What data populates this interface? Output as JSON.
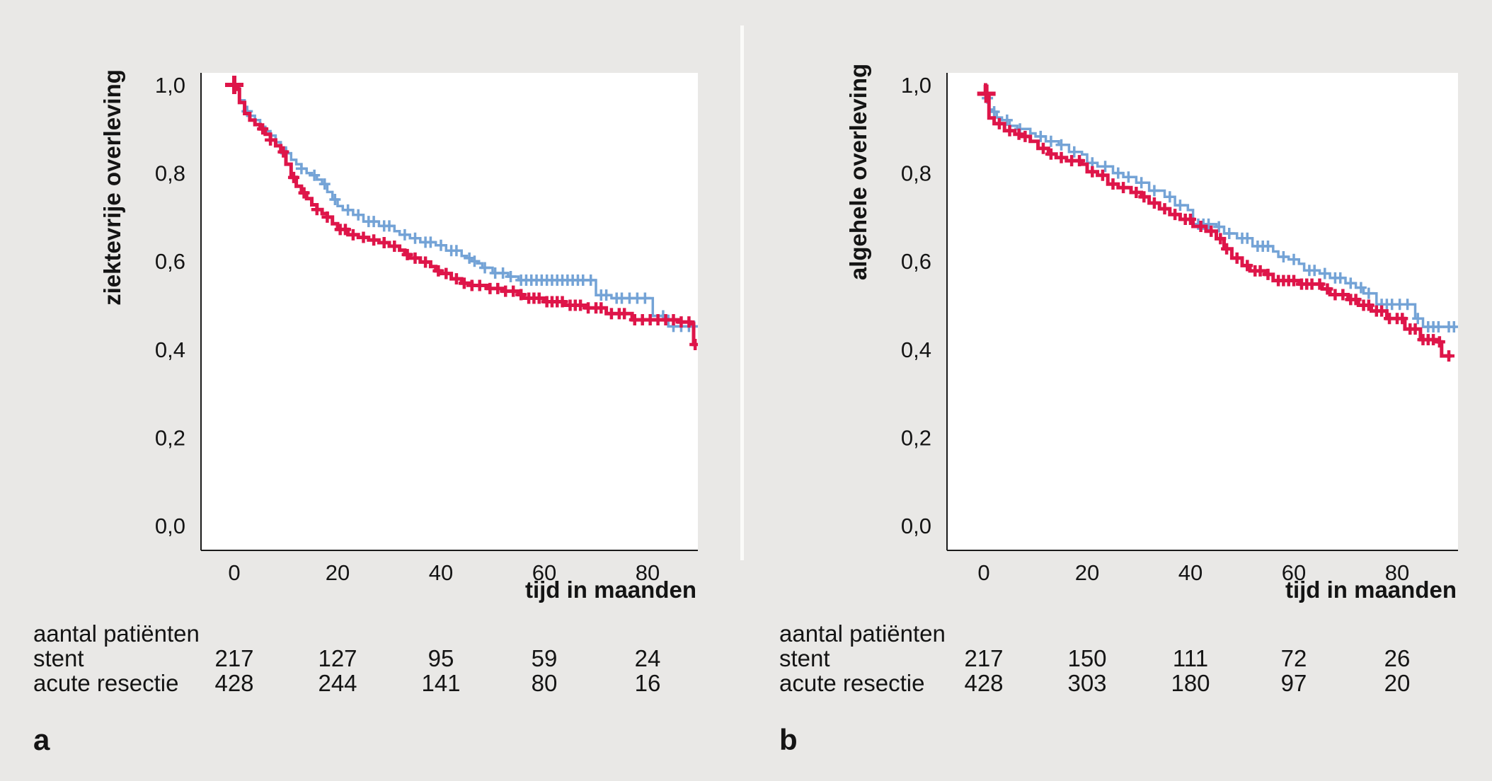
{
  "colors": {
    "background": "#e9e8e6",
    "plot_background": "#ffffff",
    "axis_line": "#1a1a1a",
    "divider": "#fbfbf9",
    "stent_curve": "#74a3d6",
    "stent_text": "#4c86b4",
    "acute_resectie_curve": "#de1549",
    "acute_resectie_text": "#c94f36",
    "panel_label": "#c94f36",
    "text": "#141414"
  },
  "chart_data": [
    {
      "type": "line",
      "subtype": "kaplan-meier-step",
      "panel_label": "a",
      "title": "",
      "xlabel": "tijd in maanden",
      "ylabel": "ziektevrije overleving",
      "xlim": [
        0,
        90
      ],
      "ylim": [
        0,
        1
      ],
      "grid": false,
      "legend_position": "none",
      "x_ticks": [
        0,
        20,
        40,
        60,
        80
      ],
      "y_ticks": [
        0.0,
        0.2,
        0.4,
        0.6,
        0.8,
        1.0
      ],
      "y_tick_labels": [
        "0,0",
        "0,2",
        "0,4",
        "0,6",
        "0,8",
        "1,0"
      ],
      "at_risk_title": "aantal patiënten",
      "at_risk_times": [
        0,
        20,
        40,
        60,
        80
      ],
      "series": [
        {
          "name": "stent",
          "color": "#74a3d6",
          "text_color": "#4c86b4",
          "at_risk": [
            217,
            127,
            95,
            59,
            24
          ],
          "survival_steps": [
            [
              0,
              1.0
            ],
            [
              1,
              0.965
            ],
            [
              2,
              0.94
            ],
            [
              3,
              0.93
            ],
            [
              4,
              0.92
            ],
            [
              5,
              0.905
            ],
            [
              6,
              0.895
            ],
            [
              7,
              0.885
            ],
            [
              8,
              0.87
            ],
            [
              9,
              0.858
            ],
            [
              10,
              0.845
            ],
            [
              11,
              0.83
            ],
            [
              12,
              0.82
            ],
            [
              13,
              0.81
            ],
            [
              14,
              0.8
            ],
            [
              15,
              0.795
            ],
            [
              16,
              0.785
            ],
            [
              17,
              0.775
            ],
            [
              18,
              0.757
            ],
            [
              19,
              0.74
            ],
            [
              20,
              0.725
            ],
            [
              21,
              0.716
            ],
            [
              23,
              0.705
            ],
            [
              25,
              0.69
            ],
            [
              28,
              0.68
            ],
            [
              31,
              0.668
            ],
            [
              32,
              0.66
            ],
            [
              34,
              0.652
            ],
            [
              36,
              0.643
            ],
            [
              39,
              0.636
            ],
            [
              41,
              0.624
            ],
            [
              44,
              0.612
            ],
            [
              45,
              0.607
            ],
            [
              46,
              0.6
            ],
            [
              47,
              0.595
            ],
            [
              48,
              0.585
            ],
            [
              50,
              0.573
            ],
            [
              53,
              0.565
            ],
            [
              55,
              0.557
            ],
            [
              70,
              0.523
            ],
            [
              73,
              0.516
            ],
            [
              81,
              0.476
            ],
            [
              84,
              0.452
            ],
            [
              89.5,
              0.452
            ]
          ],
          "censor_times": [
            2.5,
            10,
            13,
            15.5,
            17.5,
            19.5,
            22,
            24,
            26,
            27,
            29,
            30,
            33,
            35,
            37,
            38,
            40,
            42,
            43,
            45.5,
            46.5,
            48.5,
            50.5,
            52,
            53.5,
            55.5,
            56.5,
            57.5,
            58.5,
            59.5,
            60.5,
            61.5,
            62.5,
            63.5,
            64.5,
            65.5,
            66.5,
            67.5,
            69,
            71,
            72,
            74,
            75,
            76.5,
            78,
            79.5,
            83,
            85,
            86.5,
            88,
            89
          ]
        },
        {
          "name": "acute resectie",
          "color": "#de1549",
          "text_color": "#c94f36",
          "at_risk": [
            428,
            244,
            141,
            80,
            16
          ],
          "survival_steps": [
            [
              0,
              1.0
            ],
            [
              0.7,
              0.99
            ],
            [
              1,
              0.96
            ],
            [
              2,
              0.935
            ],
            [
              3,
              0.92
            ],
            [
              4,
              0.91
            ],
            [
              5,
              0.9
            ],
            [
              6,
              0.888
            ],
            [
              7,
              0.875
            ],
            [
              8,
              0.862
            ],
            [
              9,
              0.848
            ],
            [
              10,
              0.82
            ],
            [
              11,
              0.79
            ],
            [
              12,
              0.77
            ],
            [
              13,
              0.755
            ],
            [
              14,
              0.742
            ],
            [
              15,
              0.728
            ],
            [
              16,
              0.717
            ],
            [
              17,
              0.708
            ],
            [
              18,
              0.7
            ],
            [
              19,
              0.685
            ],
            [
              20,
              0.672
            ],
            [
              22,
              0.66
            ],
            [
              24,
              0.654
            ],
            [
              26,
              0.648
            ],
            [
              28,
              0.642
            ],
            [
              30,
              0.634
            ],
            [
              32,
              0.625
            ],
            [
              33,
              0.615
            ],
            [
              34,
              0.607
            ],
            [
              36,
              0.598
            ],
            [
              38,
              0.588
            ],
            [
              39,
              0.578
            ],
            [
              40,
              0.572
            ],
            [
              42,
              0.56
            ],
            [
              44,
              0.55
            ],
            [
              46,
              0.545
            ],
            [
              49,
              0.538
            ],
            [
              52,
              0.532
            ],
            [
              55,
              0.524
            ],
            [
              56,
              0.516
            ],
            [
              60,
              0.508
            ],
            [
              64,
              0.5
            ],
            [
              68,
              0.494
            ],
            [
              72,
              0.481
            ],
            [
              77,
              0.467
            ],
            [
              86,
              0.462
            ],
            [
              88.3,
              0.458
            ],
            [
              88.9,
              0.411
            ],
            [
              89.5,
              0.411
            ]
          ],
          "censor_times": [
            0,
            5.5,
            7,
            9.5,
            11.5,
            13.5,
            16,
            18,
            20.5,
            21.5,
            23,
            25,
            27,
            29,
            31,
            33.5,
            35,
            37,
            39.5,
            41,
            43,
            44.5,
            46,
            47.5,
            49.5,
            51,
            52.5,
            54,
            55.5,
            57,
            58,
            59,
            60.5,
            61.5,
            62.5,
            63.5,
            65,
            66,
            67,
            68.5,
            70,
            71,
            73,
            74.5,
            75.5,
            77.5,
            79,
            80.5,
            82,
            83.5,
            85,
            86.5,
            88,
            89.2
          ]
        }
      ]
    },
    {
      "type": "line",
      "subtype": "kaplan-meier-step",
      "panel_label": "b",
      "title": "",
      "xlabel": "tijd in maanden",
      "ylabel": "algehele overleving",
      "xlim": [
        0,
        92
      ],
      "ylim": [
        0,
        1
      ],
      "grid": false,
      "legend_position": "none",
      "x_ticks": [
        0,
        20,
        40,
        60,
        80
      ],
      "y_ticks": [
        0.0,
        0.2,
        0.4,
        0.6,
        0.8,
        1.0
      ],
      "y_tick_labels": [
        "0,0",
        "0,2",
        "0,4",
        "0,6",
        "0,8",
        "1,0"
      ],
      "at_risk_title": "aantal patiënten",
      "at_risk_times": [
        0,
        20,
        40,
        60,
        80
      ],
      "series": [
        {
          "name": "stent",
          "color": "#74a3d6",
          "text_color": "#4c86b4",
          "at_risk": [
            217,
            150,
            111,
            72,
            26
          ],
          "survival_steps": [
            [
              0,
              1.0
            ],
            [
              0.5,
              0.97
            ],
            [
              1,
              0.944
            ],
            [
              2,
              0.939
            ],
            [
              2.5,
              0.926
            ],
            [
              3.5,
              0.92
            ],
            [
              5,
              0.907
            ],
            [
              6.5,
              0.9
            ],
            [
              9,
              0.89
            ],
            [
              10,
              0.883
            ],
            [
              12,
              0.872
            ],
            [
              14.5,
              0.864
            ],
            [
              16.5,
              0.848
            ],
            [
              19,
              0.842
            ],
            [
              20,
              0.823
            ],
            [
              22,
              0.815
            ],
            [
              25,
              0.8
            ],
            [
              27,
              0.791
            ],
            [
              29.5,
              0.778
            ],
            [
              32,
              0.76
            ],
            [
              35,
              0.746
            ],
            [
              37,
              0.727
            ],
            [
              39.5,
              0.716
            ],
            [
              40.5,
              0.684
            ],
            [
              45,
              0.678
            ],
            [
              46.5,
              0.663
            ],
            [
              49,
              0.652
            ],
            [
              52,
              0.634
            ],
            [
              56,
              0.622
            ],
            [
              57,
              0.61
            ],
            [
              59,
              0.604
            ],
            [
              61,
              0.594
            ],
            [
              62,
              0.579
            ],
            [
              65,
              0.572
            ],
            [
              67,
              0.562
            ],
            [
              70,
              0.55
            ],
            [
              72,
              0.54
            ],
            [
              73.5,
              0.527
            ],
            [
              76,
              0.502
            ],
            [
              83.5,
              0.47
            ],
            [
              85,
              0.451
            ],
            [
              91.5,
              0.451
            ]
          ],
          "censor_times": [
            0.7,
            2,
            4.5,
            7,
            11,
            13,
            15,
            17.5,
            21,
            23.5,
            26,
            28,
            30.5,
            33,
            36,
            38,
            41.5,
            42.5,
            43.5,
            45.5,
            47.5,
            50,
            51,
            53,
            54,
            55,
            58,
            60,
            63,
            64,
            66,
            68,
            69,
            71,
            73,
            74.5,
            77,
            78,
            79,
            80.5,
            82,
            84,
            86,
            87,
            88,
            90,
            91
          ]
        },
        {
          "name": "acute resectie",
          "color": "#de1549",
          "text_color": "#c94f36",
          "at_risk": [
            428,
            303,
            180,
            97,
            20
          ],
          "survival_steps": [
            [
              0,
              1.0
            ],
            [
              0.3,
              0.98
            ],
            [
              1,
              0.925
            ],
            [
              2,
              0.912
            ],
            [
              4,
              0.896
            ],
            [
              6,
              0.888
            ],
            [
              7.5,
              0.883
            ],
            [
              9,
              0.872
            ],
            [
              10.5,
              0.856
            ],
            [
              12.5,
              0.843
            ],
            [
              14,
              0.835
            ],
            [
              16,
              0.828
            ],
            [
              19,
              0.82
            ],
            [
              20,
              0.803
            ],
            [
              22,
              0.795
            ],
            [
              24,
              0.775
            ],
            [
              26,
              0.767
            ],
            [
              28.5,
              0.756
            ],
            [
              30.5,
              0.746
            ],
            [
              32,
              0.732
            ],
            [
              34,
              0.719
            ],
            [
              36,
              0.706
            ],
            [
              38,
              0.695
            ],
            [
              40.5,
              0.679
            ],
            [
              43,
              0.668
            ],
            [
              45,
              0.651
            ],
            [
              46.5,
              0.628
            ],
            [
              48,
              0.607
            ],
            [
              50,
              0.59
            ],
            [
              51.5,
              0.578
            ],
            [
              54.5,
              0.57
            ],
            [
              56,
              0.556
            ],
            [
              61,
              0.548
            ],
            [
              65.5,
              0.537
            ],
            [
              67,
              0.524
            ],
            [
              70.5,
              0.513
            ],
            [
              72.5,
              0.5
            ],
            [
              75,
              0.487
            ],
            [
              78,
              0.47
            ],
            [
              81.5,
              0.446
            ],
            [
              84.5,
              0.422
            ],
            [
              88,
              0.417
            ],
            [
              88.6,
              0.385
            ],
            [
              90.5,
              0.385
            ]
          ],
          "censor_times": [
            0.5,
            3,
            5,
            6.8,
            8,
            11.5,
            13,
            15,
            17,
            18.5,
            21,
            23,
            25,
            27,
            29.5,
            31,
            33,
            35,
            37,
            39,
            40,
            42,
            44,
            45.8,
            47,
            49,
            51,
            52.5,
            53.5,
            55,
            57,
            58,
            59,
            60,
            61.5,
            62.5,
            63.5,
            65,
            66.5,
            68,
            69.5,
            71,
            72,
            73.5,
            74.5,
            76,
            77,
            78.5,
            80,
            81,
            82.5,
            83.5,
            85,
            86,
            87,
            88.2,
            90
          ]
        }
      ]
    }
  ]
}
